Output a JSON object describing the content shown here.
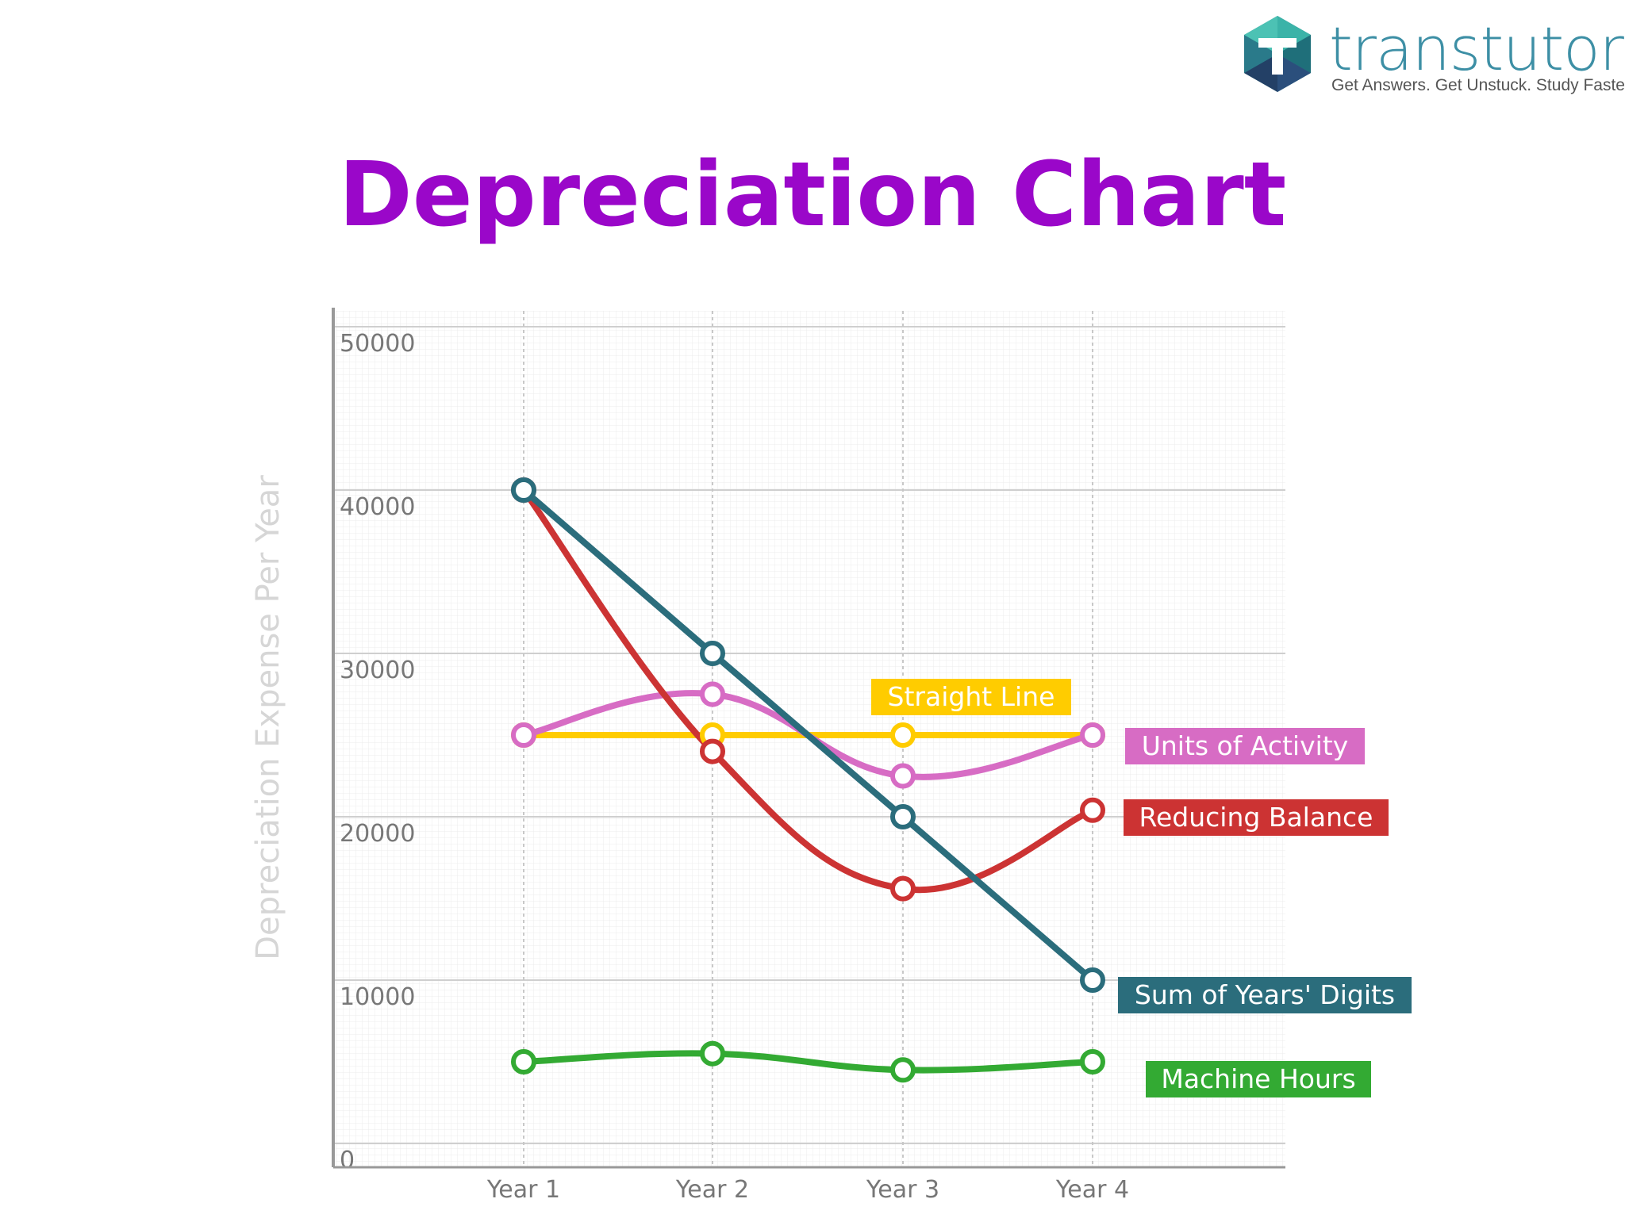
{
  "logo": {
    "name": "transtutors",
    "tagline": "Get Answers. Get Unstuck. Study Faster",
    "icon": "hexagon-t-logo-icon"
  },
  "title": "Depreciation Chart",
  "colors": {
    "title": "#9a07c9",
    "straight_line": "#ffcc00",
    "units_of_activity": "#d76cc4",
    "reducing_balance": "#cc3333",
    "sum_of_years_digits": "#2b6d7c",
    "machine_hours": "#33aa33",
    "logo": "#3d8fa5"
  },
  "chart_data": {
    "type": "line",
    "title": "Depreciation Chart",
    "xlabel": "",
    "ylabel": "Depreciation Expense Per Year",
    "categories": [
      "Year 1",
      "Year 2",
      "Year 3",
      "Year 4"
    ],
    "ylim": [
      0,
      50000
    ],
    "yticks": [
      "0",
      "10000",
      "20000",
      "30000",
      "40000",
      "50000"
    ],
    "grid": true,
    "legend_placement": "right, inline beside each series",
    "series": [
      {
        "name": "Straight Line",
        "values": [
          25000,
          25000,
          25000,
          25000
        ],
        "color": "#ffcc00",
        "curved": false
      },
      {
        "name": "Units of Activity",
        "values": [
          25000,
          27500,
          22500,
          25000
        ],
        "color": "#d76cc4",
        "curved": true
      },
      {
        "name": "Reducing Balance",
        "values": [
          40000,
          24000,
          15600,
          20400
        ],
        "color": "#cc3333",
        "curved": true
      },
      {
        "name": "Sum of Years' Digits",
        "values": [
          40000,
          30000,
          20000,
          10000
        ],
        "color": "#2b6d7c",
        "curved": false
      },
      {
        "name": "Machine Hours",
        "values": [
          5000,
          5500,
          4500,
          5000
        ],
        "color": "#33aa33",
        "curved": true
      }
    ]
  }
}
